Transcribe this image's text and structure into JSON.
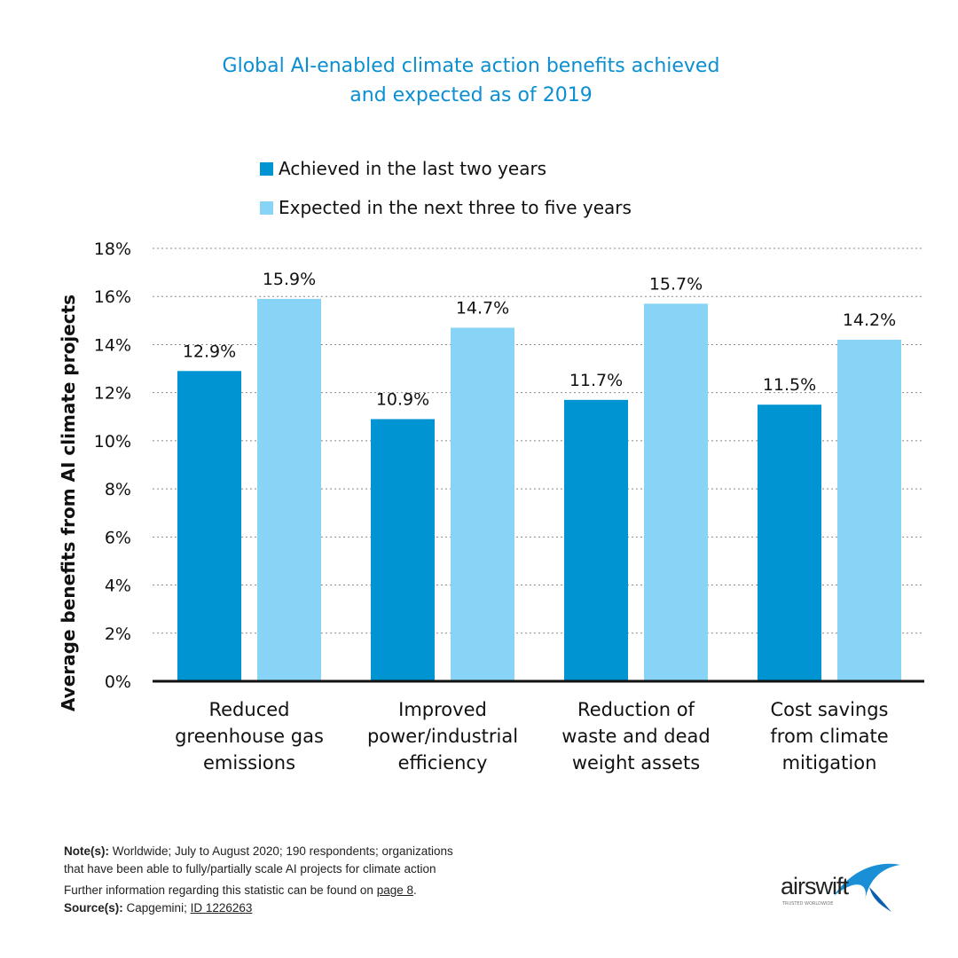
{
  "colors": {
    "achieved": "#0094d3",
    "expected": "#87d4f6",
    "title": "#0b8fd2"
  },
  "chart_data": {
    "type": "bar",
    "title_line1": "Global AI-enabled climate action benefits achieved",
    "title_line2": "and expected as of 2019",
    "ylabel": "Average benefits from AI climate projects",
    "ylim": [
      0,
      18
    ],
    "yticks": [
      "0%",
      "2%",
      "4%",
      "6%",
      "8%",
      "10%",
      "12%",
      "14%",
      "16%",
      "18%"
    ],
    "grid": true,
    "legend_position": "top",
    "categories": [
      [
        "Reduced",
        "greenhouse gas",
        "emissions"
      ],
      [
        "Improved",
        "power/industrial",
        "efficiency"
      ],
      [
        "Reduction of",
        "waste and dead",
        "weight assets"
      ],
      [
        "Cost savings",
        "from climate",
        "mitigation"
      ]
    ],
    "series": [
      {
        "name": "Achieved in the last two years",
        "values": [
          12.9,
          10.9,
          11.7,
          11.5
        ],
        "labels": [
          "12.9%",
          "10.9%",
          "11.7%",
          "11.5%"
        ]
      },
      {
        "name": "Expected in the next three to five years",
        "values": [
          15.9,
          14.7,
          15.7,
          14.2
        ],
        "labels": [
          "15.9%",
          "14.7%",
          "15.7%",
          "14.2%"
        ]
      }
    ]
  },
  "notes": {
    "note_label": "Note(s):",
    "note_line1": "Worldwide; July to August 2020; 190 respondents; organizations",
    "note_line2": "that have been  able to fully/partially scale AI projects for climate action",
    "further": "Further  information regarding this statistic can be found on ",
    "page_link": "page 8",
    "source_label": "Source(s):",
    "source": "Capgemini; ",
    "source_id": "ID 1226263"
  },
  "logo": {
    "name": "airswift",
    "tagline": "TRUSTED WORLDWIDE"
  }
}
